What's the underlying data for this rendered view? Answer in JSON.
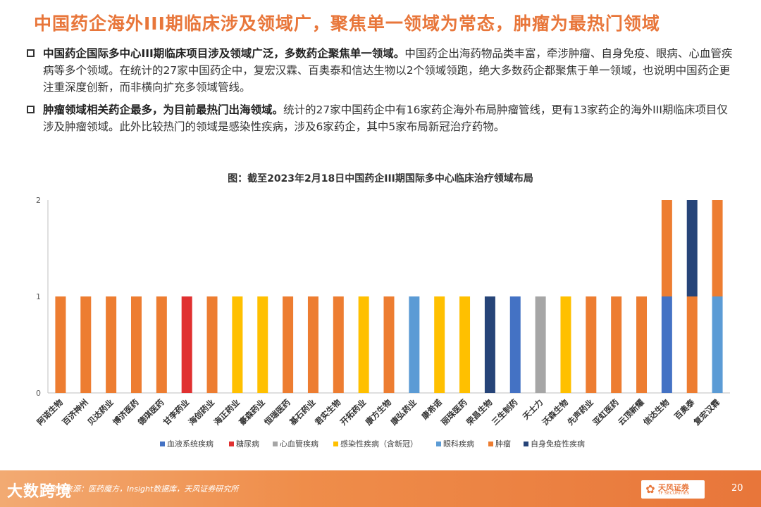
{
  "page": {
    "title": "中国药企海外III期临床涉及领域广，聚焦单一领域为常态，肿瘤为最热门领域",
    "bullets": [
      {
        "bold": "中国药企国际多中心III期临床项目涉及领域广泛，多数药企聚焦单一领域。",
        "text": "中国药企出海药物品类丰富，牵涉肿瘤、自身免疫、眼病、心血管疾病等多个领域。在统计的27家中国药企中，复宏汉霖、百奥泰和信达生物以2个领域领跑，绝大多数药企都聚焦于单一领域，也说明中国药企更注重深度创新，而非横向扩充多领域管线。"
      },
      {
        "bold": "肿瘤领域相关药企最多，为目前最热门出海领域。",
        "text": "统计的27家中国药企中有16家药企海外布局肿瘤管线，更有13家药企的海外III期临床项目仅涉及肿瘤领域。此外比较热门的领域是感染性疾病，涉及6家药企，其中5家布局新冠治疗药物。"
      }
    ],
    "footer": {
      "logo_left": "大数跨境",
      "source": "资料来源：医药魔方，Insight数据库，天风证券研究所",
      "brand_name": "天风证券",
      "brand_sub": "TF SECURITIES",
      "page_number": "20"
    }
  },
  "chart_data": {
    "type": "bar",
    "stacked": true,
    "title": "图：截至2023年2月18日中国药企III期国际多中心临床治疗领域布局",
    "ylim": [
      0,
      2
    ],
    "yticks": [
      0,
      1,
      2
    ],
    "categories": [
      "阿诺生物",
      "百济神州",
      "贝达药业",
      "博济医药",
      "德琪医药",
      "甘李药业",
      "海创药业",
      "海正药业",
      "豪森药业",
      "恒瑞医药",
      "基石药业",
      "君实生物",
      "开拓药业",
      "康方生物",
      "康弘药业",
      "康希诺",
      "丽珠医药",
      "荣昌生物",
      "三生制药",
      "天士力",
      "沃森生物",
      "先声药业",
      "亚虹医药",
      "云顶新耀",
      "信达生物",
      "百奥泰",
      "复宏汉霖"
    ],
    "series": [
      {
        "name": "血液系统疾病",
        "color": "#4472c4",
        "values": [
          0,
          0,
          0,
          0,
          0,
          0,
          0,
          0,
          0,
          0,
          0,
          0,
          0,
          0,
          0,
          0,
          0,
          0,
          1,
          0,
          0,
          0,
          0,
          0,
          1,
          0,
          0
        ]
      },
      {
        "name": "糖尿病",
        "color": "#e03030",
        "values": [
          0,
          0,
          0,
          0,
          0,
          1,
          0,
          0,
          0,
          0,
          0,
          0,
          0,
          0,
          0,
          0,
          0,
          0,
          0,
          0,
          0,
          0,
          0,
          0,
          0,
          0,
          0
        ]
      },
      {
        "name": "心血管疾病",
        "color": "#a6a6a6",
        "values": [
          0,
          0,
          0,
          0,
          0,
          0,
          0,
          0,
          0,
          0,
          0,
          0,
          0,
          0,
          0,
          0,
          0,
          0,
          0,
          1,
          0,
          0,
          0,
          0,
          0,
          0,
          0
        ]
      },
      {
        "name": "感染性疾病（含新冠）",
        "color": "#ffc000",
        "values": [
          0,
          0,
          0,
          0,
          0,
          0,
          0,
          1,
          1,
          0,
          0,
          0,
          1,
          0,
          0,
          1,
          1,
          0,
          0,
          0,
          1,
          0,
          0,
          0,
          0,
          0,
          0
        ]
      },
      {
        "name": "眼科疾病",
        "color": "#5b9bd5",
        "values": [
          0,
          0,
          0,
          0,
          0,
          0,
          0,
          0,
          0,
          0,
          0,
          0,
          0,
          0,
          1,
          0,
          0,
          0,
          0,
          0,
          0,
          0,
          0,
          0,
          0,
          0,
          1
        ]
      },
      {
        "name": "肿瘤",
        "color": "#ed7d31",
        "values": [
          1,
          1,
          1,
          1,
          1,
          0,
          1,
          0,
          0,
          1,
          1,
          1,
          0,
          1,
          0,
          0,
          0,
          0,
          0,
          0,
          0,
          1,
          1,
          1,
          1,
          1,
          1
        ]
      },
      {
        "name": "自身免疫性疾病",
        "color": "#264478",
        "values": [
          0,
          0,
          0,
          0,
          0,
          0,
          0,
          0,
          0,
          0,
          0,
          0,
          0,
          0,
          0,
          0,
          0,
          1,
          0,
          0,
          0,
          0,
          0,
          0,
          0,
          1,
          0
        ]
      }
    ],
    "legend_position": "bottom",
    "grid": false
  }
}
